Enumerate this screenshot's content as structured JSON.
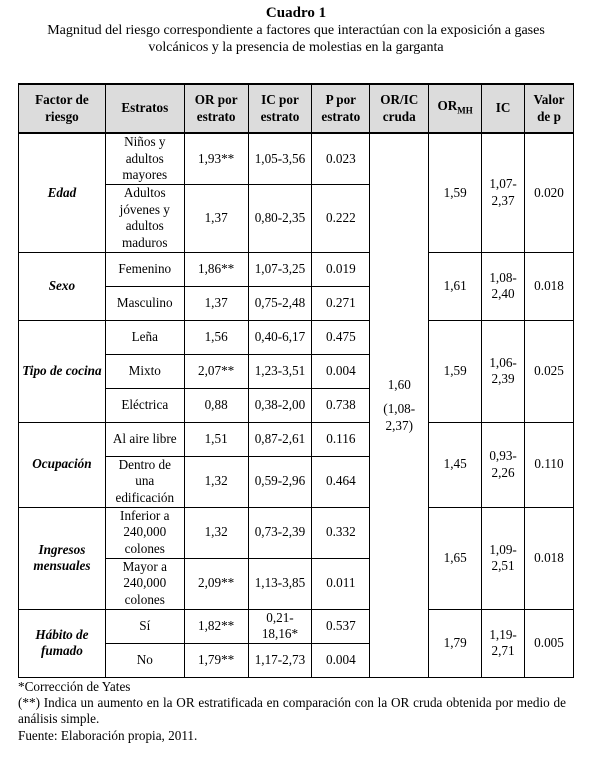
{
  "title": "Cuadro 1",
  "subtitle": "Magnitud del riesgo correspondiente a factores que interactúan con la exposición a gases volcánicos y la presencia de molestias en la garganta",
  "headers": {
    "factor": "Factor de riesgo",
    "estratos": "Estratos",
    "or_estrato": "OR por estrato",
    "ic_estrato": "IC por estrato",
    "p_estrato": "P por estrato",
    "or_ic_cruda": "OR/IC cruda",
    "or_mh": "OR",
    "or_mh_sub": "MH",
    "ic": "IC",
    "valor_p": "Valor de p"
  },
  "crude": {
    "or": "1,60",
    "ic": "(1,08-2,37)"
  },
  "groups": [
    {
      "factor": "Edad",
      "or_mh": "1,59",
      "ic": "1,07-2,37",
      "p": "0.020",
      "rows": [
        {
          "estrato": "Niños y adultos mayores",
          "or": "1,93**",
          "ic": "1,05-3,56",
          "p": "0.023"
        },
        {
          "estrato": "Adultos jóvenes y adultos maduros",
          "or": "1,37",
          "ic": "0,80-2,35",
          "p": "0.222"
        }
      ]
    },
    {
      "factor": "Sexo",
      "or_mh": "1,61",
      "ic": "1,08-2,40",
      "p": "0.018",
      "rows": [
        {
          "estrato": "Femenino",
          "or": "1,86**",
          "ic": "1,07-3,25",
          "p": "0.019"
        },
        {
          "estrato": "Masculino",
          "or": "1,37",
          "ic": "0,75-2,48",
          "p": "0.271"
        }
      ]
    },
    {
      "factor": "Tipo de cocina",
      "or_mh": "1,59",
      "ic": "1,06-2,39",
      "p": "0.025",
      "rows": [
        {
          "estrato": "Leña",
          "or": "1,56",
          "ic": "0,40-6,17",
          "p": "0.475"
        },
        {
          "estrato": "Mixto",
          "or": "2,07**",
          "ic": "1,23-3,51",
          "p": "0.004"
        },
        {
          "estrato": "Eléctrica",
          "or": "0,88",
          "ic": "0,38-2,00",
          "p": "0.738"
        }
      ]
    },
    {
      "factor": "Ocupación",
      "or_mh": "1,45",
      "ic": "0,93-2,26",
      "p": "0.110",
      "rows": [
        {
          "estrato": "Al aire libre",
          "or": "1,51",
          "ic": "0,87-2,61",
          "p": "0.116"
        },
        {
          "estrato": "Dentro de una edificación",
          "or": "1,32",
          "ic": "0,59-2,96",
          "p": "0.464"
        }
      ]
    },
    {
      "factor": "Ingresos mensuales",
      "or_mh": "1,65",
      "ic": "1,09-2,51",
      "p": "0.018",
      "rows": [
        {
          "estrato": "Inferior a 240,000 colones",
          "or": "1,32",
          "ic": "0,73-2,39",
          "p": "0.332"
        },
        {
          "estrato": "Mayor a 240,000 colones",
          "or": "2,09**",
          "ic": "1,13-3,85",
          "p": "0.011"
        }
      ]
    },
    {
      "factor": "Hábito de fumado",
      "or_mh": "1,79",
      "ic": "1,19-2,71",
      "p": "0.005",
      "rows": [
        {
          "estrato": "Sí",
          "or": "1,82**",
          "ic": "0,21-18,16*",
          "p": "0.537"
        },
        {
          "estrato": "No",
          "or": "1,79**",
          "ic": "1,17-2,73",
          "p": "0.004"
        }
      ]
    }
  ],
  "notes": [
    "*Corrección de Yates",
    "(**) Indica un aumento en la OR estratificada en comparación con la OR cruda obtenida por medio de análisis simple.",
    "Fuente: Elaboración propia, 2011."
  ]
}
